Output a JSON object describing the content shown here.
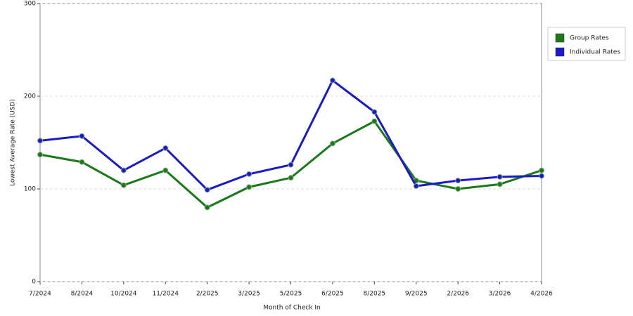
{
  "chart_data": {
    "type": "line",
    "x_label": "Month of Check In",
    "y_label": "Lowest Average Rate (USD)",
    "categories": [
      "7/2024",
      "8/2024",
      "10/2024",
      "11/2024",
      "2/2025",
      "3/2025",
      "5/2025",
      "6/2025",
      "8/2025",
      "9/2025",
      "2/2026",
      "3/2026",
      "4/2026"
    ],
    "series": [
      {
        "name": "Group Rates",
        "color": "#1a7a1a",
        "values": [
          137,
          129,
          104,
          120,
          80,
          102,
          112,
          149,
          173,
          109,
          100,
          105,
          120
        ]
      },
      {
        "name": "Individual Rates",
        "color": "#1a1acc",
        "values": [
          152,
          157,
          120,
          144,
          99,
          116,
          126,
          217,
          183,
          103,
          109,
          113,
          114
        ]
      }
    ],
    "ylim": [
      0,
      300
    ],
    "yticks": [
      0,
      100,
      200,
      300
    ],
    "grid": true,
    "legend": "right"
  }
}
